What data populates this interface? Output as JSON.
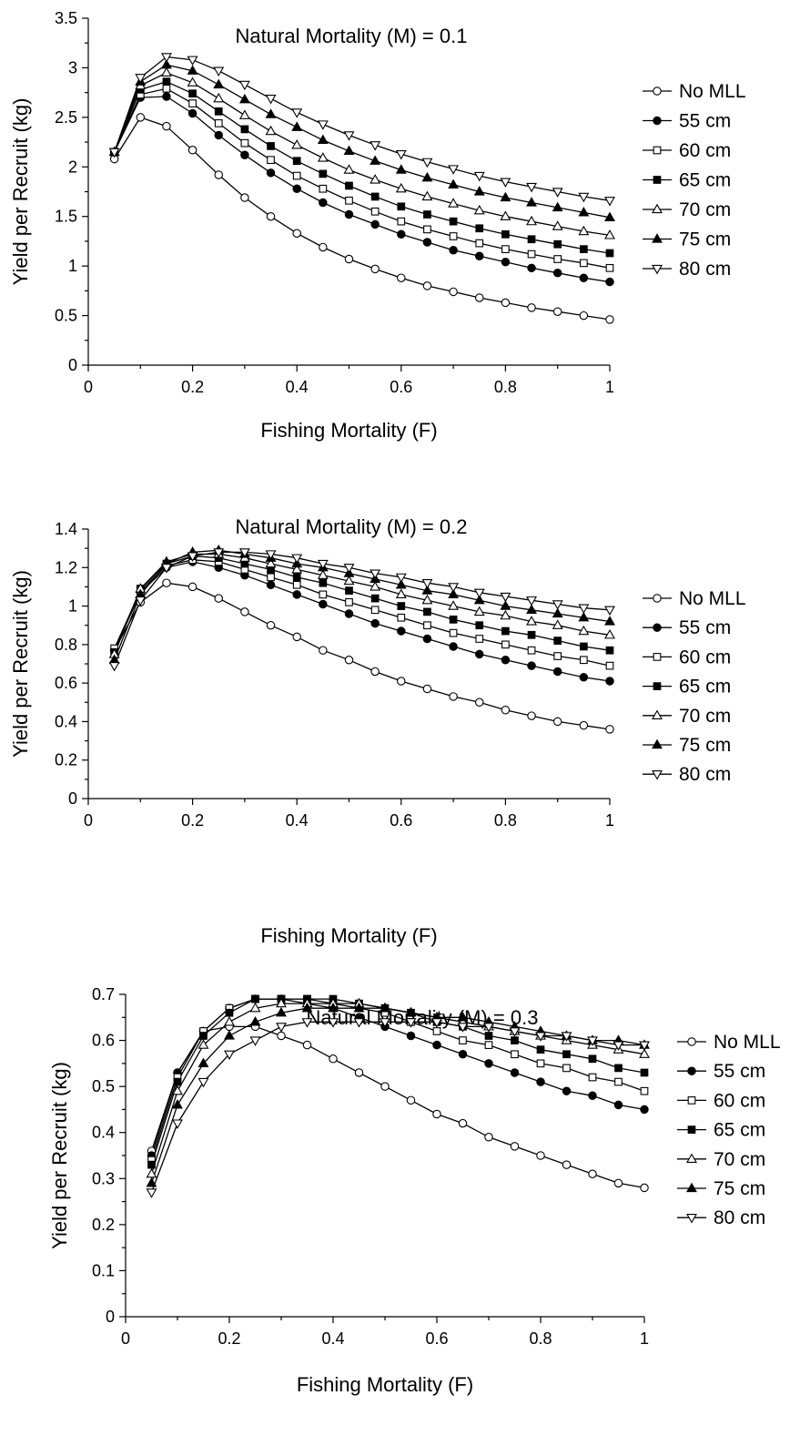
{
  "chart_data": [
    {
      "type": "line",
      "title": "Natural Mortality (M) = 0.1",
      "xlabel": "Fishing Mortality (F)",
      "ylabel": "Yield per Recruit (kg)",
      "xlim": [
        0,
        1
      ],
      "ylim": [
        0,
        3.5
      ],
      "xticks": [
        0,
        0.2,
        0.4,
        0.6,
        0.8,
        1
      ],
      "xtick_labels": [
        "0",
        "0.2",
        "0.4",
        "0.6",
        "0.8",
        "1"
      ],
      "yticks": [
        0,
        0.5,
        1,
        1.5,
        2,
        2.5,
        3,
        3.5
      ],
      "ytick_labels": [
        "0",
        "0.5",
        "1",
        "1.5",
        "2",
        "2.5",
        "3",
        "3.5"
      ],
      "grid": false,
      "legend_position": "right",
      "x": [
        0.05,
        0.1,
        0.15,
        0.2,
        0.25,
        0.3,
        0.35,
        0.4,
        0.45,
        0.5,
        0.55,
        0.6,
        0.65,
        0.7,
        0.75,
        0.8,
        0.85,
        0.9,
        0.95,
        1.0
      ],
      "series": [
        {
          "name": "No MLL",
          "marker": "circle-open",
          "values": [
            2.08,
            2.5,
            2.41,
            2.17,
            1.92,
            1.69,
            1.5,
            1.33,
            1.19,
            1.07,
            0.97,
            0.88,
            0.8,
            0.74,
            0.68,
            0.63,
            0.58,
            0.54,
            0.5,
            0.46
          ]
        },
        {
          "name": "55 cm",
          "marker": "circle-filled",
          "values": [
            2.15,
            2.7,
            2.71,
            2.54,
            2.32,
            2.12,
            1.94,
            1.78,
            1.64,
            1.52,
            1.42,
            1.32,
            1.24,
            1.16,
            1.1,
            1.04,
            0.98,
            0.93,
            0.88,
            0.84
          ]
        },
        {
          "name": "60 cm",
          "marker": "square-open",
          "values": [
            2.15,
            2.73,
            2.79,
            2.64,
            2.44,
            2.24,
            2.07,
            1.91,
            1.78,
            1.66,
            1.55,
            1.45,
            1.37,
            1.3,
            1.23,
            1.17,
            1.12,
            1.07,
            1.03,
            0.98
          ]
        },
        {
          "name": "65 cm",
          "marker": "square-filled",
          "values": [
            2.15,
            2.78,
            2.86,
            2.74,
            2.56,
            2.38,
            2.21,
            2.06,
            1.93,
            1.81,
            1.7,
            1.6,
            1.52,
            1.45,
            1.38,
            1.32,
            1.27,
            1.22,
            1.17,
            1.13
          ]
        },
        {
          "name": "70 cm",
          "marker": "triangle-up-open",
          "values": [
            2.15,
            2.82,
            2.95,
            2.85,
            2.69,
            2.52,
            2.36,
            2.22,
            2.09,
            1.97,
            1.87,
            1.78,
            1.7,
            1.63,
            1.56,
            1.5,
            1.45,
            1.4,
            1.35,
            1.31
          ]
        },
        {
          "name": "75 cm",
          "marker": "triangle-up-filled",
          "values": [
            2.15,
            2.86,
            3.03,
            2.97,
            2.83,
            2.68,
            2.53,
            2.4,
            2.27,
            2.16,
            2.06,
            1.97,
            1.89,
            1.82,
            1.75,
            1.69,
            1.64,
            1.59,
            1.54,
            1.49
          ]
        },
        {
          "name": "80 cm",
          "marker": "triangle-down-open",
          "values": [
            2.15,
            2.9,
            3.11,
            3.08,
            2.97,
            2.83,
            2.69,
            2.55,
            2.43,
            2.32,
            2.22,
            2.13,
            2.05,
            1.98,
            1.91,
            1.85,
            1.8,
            1.75,
            1.7,
            1.66
          ]
        }
      ]
    },
    {
      "type": "line",
      "title": "Natural Mortality (M) = 0.2",
      "xlabel": "Fishing Mortality (F)",
      "ylabel": "Yield per Recruit (kg)",
      "xlim": [
        0,
        1
      ],
      "ylim": [
        0,
        1.4
      ],
      "xticks": [
        0,
        0.2,
        0.4,
        0.6,
        0.8,
        1
      ],
      "xtick_labels": [
        "0",
        "0.2",
        "0.4",
        "0.6",
        "0.8",
        "1"
      ],
      "yticks": [
        0,
        0.2,
        0.4,
        0.6,
        0.8,
        1,
        1.2,
        1.4
      ],
      "ytick_labels": [
        "0",
        "0.2",
        "0.4",
        "0.6",
        "0.8",
        "1",
        "1.2",
        "1.4"
      ],
      "grid": false,
      "legend_position": "right",
      "x": [
        0.05,
        0.1,
        0.15,
        0.2,
        0.25,
        0.3,
        0.35,
        0.4,
        0.45,
        0.5,
        0.55,
        0.6,
        0.65,
        0.7,
        0.75,
        0.8,
        0.85,
        0.9,
        0.95,
        1.0
      ],
      "series": [
        {
          "name": "No MLL",
          "marker": "circle-open",
          "values": [
            0.77,
            1.02,
            1.12,
            1.1,
            1.04,
            0.97,
            0.9,
            0.84,
            0.77,
            0.72,
            0.66,
            0.61,
            0.57,
            0.53,
            0.5,
            0.46,
            0.43,
            0.4,
            0.38,
            0.36
          ]
        },
        {
          "name": "55 cm",
          "marker": "circle-filled",
          "values": [
            0.77,
            1.07,
            1.2,
            1.23,
            1.2,
            1.16,
            1.11,
            1.06,
            1.01,
            0.96,
            0.91,
            0.87,
            0.83,
            0.79,
            0.75,
            0.72,
            0.69,
            0.66,
            0.63,
            0.61
          ]
        },
        {
          "name": "60 cm",
          "marker": "square-open",
          "values": [
            0.78,
            1.08,
            1.21,
            1.24,
            1.23,
            1.19,
            1.15,
            1.11,
            1.06,
            1.02,
            0.98,
            0.94,
            0.9,
            0.86,
            0.83,
            0.8,
            0.77,
            0.74,
            0.72,
            0.69
          ]
        },
        {
          "name": "65 cm",
          "marker": "square-filled",
          "values": [
            0.76,
            1.09,
            1.22,
            1.26,
            1.25,
            1.22,
            1.19,
            1.15,
            1.12,
            1.08,
            1.04,
            1.0,
            0.97,
            0.93,
            0.9,
            0.87,
            0.85,
            0.82,
            0.79,
            0.77
          ]
        },
        {
          "name": "70 cm",
          "marker": "triangle-up-open",
          "values": [
            0.75,
            1.09,
            1.23,
            1.27,
            1.27,
            1.25,
            1.22,
            1.19,
            1.16,
            1.13,
            1.1,
            1.06,
            1.03,
            1.0,
            0.97,
            0.95,
            0.92,
            0.9,
            0.87,
            0.85
          ]
        },
        {
          "name": "75 cm",
          "marker": "triangle-up-filled",
          "values": [
            0.72,
            1.06,
            1.22,
            1.28,
            1.29,
            1.27,
            1.25,
            1.22,
            1.2,
            1.17,
            1.14,
            1.11,
            1.08,
            1.06,
            1.03,
            1.0,
            0.98,
            0.96,
            0.94,
            0.92
          ]
        },
        {
          "name": "80 cm",
          "marker": "triangle-down-open",
          "values": [
            0.69,
            1.03,
            1.2,
            1.26,
            1.28,
            1.28,
            1.27,
            1.25,
            1.22,
            1.2,
            1.17,
            1.15,
            1.12,
            1.1,
            1.07,
            1.05,
            1.03,
            1.01,
            0.99,
            0.98
          ]
        }
      ]
    },
    {
      "type": "line",
      "title": "Natural Mortality (M) = 0.3",
      "xlabel": "Fishing Mortality (F)",
      "ylabel": "Yield per Recruit (kg)",
      "xlim": [
        0,
        1
      ],
      "ylim": [
        0,
        0.7
      ],
      "xticks": [
        0,
        0.2,
        0.4,
        0.6,
        0.8,
        1
      ],
      "xtick_labels": [
        "0",
        "0.2",
        "0.4",
        "0.6",
        "0.8",
        "1"
      ],
      "yticks": [
        0,
        0.1,
        0.2,
        0.3,
        0.4,
        0.5,
        0.6,
        0.7
      ],
      "ytick_labels": [
        "0",
        "0.1",
        "0.2",
        "0.3",
        "0.4",
        "0.5",
        "0.6",
        "0.7"
      ],
      "grid": false,
      "legend_position": "right",
      "x": [
        0.05,
        0.1,
        0.15,
        0.2,
        0.25,
        0.3,
        0.35,
        0.4,
        0.45,
        0.5,
        0.55,
        0.6,
        0.65,
        0.7,
        0.75,
        0.8,
        0.85,
        0.9,
        0.95,
        1.0
      ],
      "series": [
        {
          "name": "No MLL",
          "marker": "circle-open",
          "values": [
            0.36,
            0.53,
            0.62,
            0.63,
            0.63,
            0.61,
            0.59,
            0.56,
            0.53,
            0.5,
            0.47,
            0.44,
            0.42,
            0.39,
            0.37,
            0.35,
            0.33,
            0.31,
            0.29,
            0.28
          ]
        },
        {
          "name": "55 cm",
          "marker": "circle-filled",
          "values": [
            0.35,
            0.53,
            0.62,
            0.67,
            0.69,
            0.69,
            0.68,
            0.67,
            0.65,
            0.63,
            0.61,
            0.59,
            0.57,
            0.55,
            0.53,
            0.51,
            0.49,
            0.48,
            0.46,
            0.45
          ]
        },
        {
          "name": "60 cm",
          "marker": "square-open",
          "values": [
            0.34,
            0.52,
            0.62,
            0.67,
            0.69,
            0.69,
            0.69,
            0.68,
            0.67,
            0.66,
            0.64,
            0.62,
            0.6,
            0.59,
            0.57,
            0.55,
            0.54,
            0.52,
            0.51,
            0.49
          ]
        },
        {
          "name": "65 cm",
          "marker": "square-filled",
          "values": [
            0.33,
            0.51,
            0.61,
            0.66,
            0.69,
            0.69,
            0.69,
            0.69,
            0.68,
            0.67,
            0.66,
            0.64,
            0.63,
            0.61,
            0.6,
            0.58,
            0.57,
            0.56,
            0.54,
            0.53
          ]
        },
        {
          "name": "70 cm",
          "marker": "triangle-up-open",
          "values": [
            0.31,
            0.49,
            0.59,
            0.64,
            0.67,
            0.68,
            0.68,
            0.68,
            0.68,
            0.67,
            0.66,
            0.65,
            0.64,
            0.63,
            0.62,
            0.61,
            0.6,
            0.59,
            0.58,
            0.57
          ]
        },
        {
          "name": "75 cm",
          "marker": "triangle-up-filled",
          "values": [
            0.29,
            0.46,
            0.55,
            0.61,
            0.64,
            0.66,
            0.67,
            0.67,
            0.67,
            0.67,
            0.66,
            0.65,
            0.65,
            0.64,
            0.63,
            0.62,
            0.61,
            0.6,
            0.6,
            0.59
          ]
        },
        {
          "name": "80 cm",
          "marker": "triangle-down-open",
          "values": [
            0.27,
            0.42,
            0.51,
            0.57,
            0.6,
            0.63,
            0.64,
            0.64,
            0.64,
            0.64,
            0.64,
            0.64,
            0.63,
            0.63,
            0.62,
            0.61,
            0.61,
            0.6,
            0.59,
            0.59
          ]
        }
      ]
    }
  ]
}
